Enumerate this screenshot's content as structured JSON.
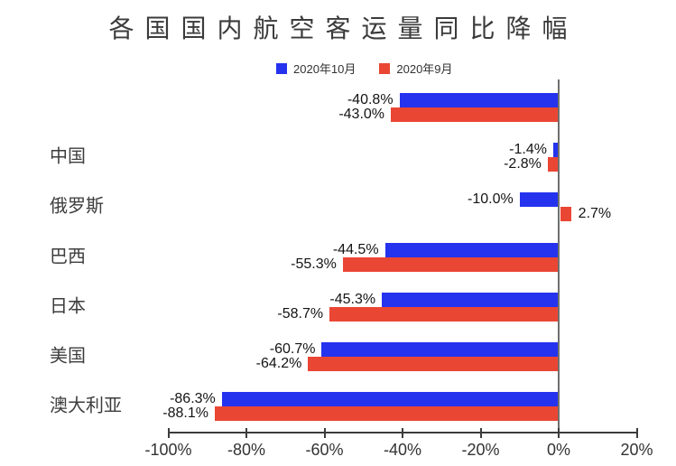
{
  "title": "各国国内航空客运量同比降幅",
  "legend": [
    {
      "label": "2020年10月",
      "color": "#2533ee"
    },
    {
      "label": "2020年9月",
      "color": "#ea4634"
    }
  ],
  "chart_data": {
    "type": "bar",
    "orientation": "horizontal",
    "title": "各国国内航空客运量同比降幅",
    "categories": [
      "",
      "中国",
      "俄罗斯",
      "巴西",
      "日本",
      "美国",
      "澳大利亚"
    ],
    "series": [
      {
        "name": "2020年10月",
        "color": "#2533ee",
        "values": [
          -40.8,
          -1.4,
          -10.0,
          -44.5,
          -45.3,
          -60.7,
          -86.3
        ]
      },
      {
        "name": "2020年9月",
        "color": "#ea4634",
        "values": [
          -43.0,
          -2.8,
          2.7,
          -55.3,
          -58.7,
          -64.2,
          -88.1
        ]
      }
    ],
    "value_labels": [
      [
        "-40.8%",
        "-1.4%",
        "-10.0%",
        "-44.5%",
        "-45.3%",
        "-60.7%",
        "-86.3%"
      ],
      [
        "-43.0%",
        "-2.8%",
        "2.7%",
        "-55.3%",
        "-58.7%",
        "-64.2%",
        "-88.1%"
      ]
    ],
    "xlim": [
      -100,
      20
    ],
    "x_tick_values": [
      -100,
      -80,
      -60,
      -40,
      -20,
      0,
      20
    ],
    "x_ticks": [
      "-100%",
      "-80%",
      "-60%",
      "-40%",
      "-20%",
      "0%",
      "20%"
    ],
    "unit": "%",
    "grid": false,
    "legend_position": "top"
  }
}
